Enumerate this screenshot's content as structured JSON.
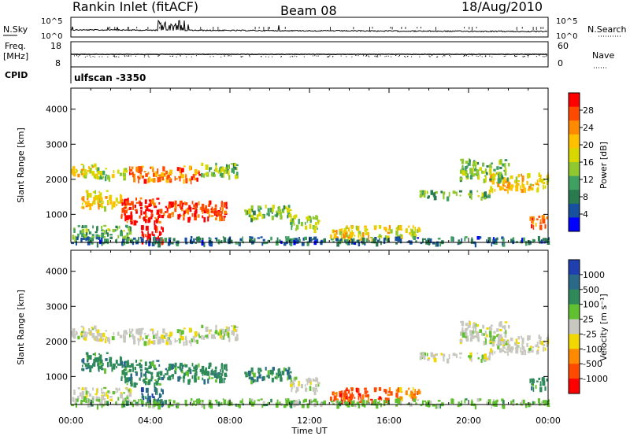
{
  "header": {
    "station": "Rankin Inlet (fitACF)",
    "beam": "Beam 08",
    "date": "18/Aug/2010"
  },
  "chart_data": [
    {
      "type": "line",
      "id": "nsky",
      "left_label": "N.Sky",
      "right_label": "N.Search",
      "left_ticks": [
        "10^5",
        "10^0"
      ],
      "right_ticks": [
        "10^5",
        "10^0"
      ]
    },
    {
      "type": "line",
      "id": "freq",
      "left_label_top": "Freq.",
      "left_label_unit": "[MHz]",
      "left_ticks": [
        "18",
        "8"
      ],
      "right_ticks": [
        "60",
        "0"
      ],
      "right_label": "Nave",
      "left_extra": "CPID",
      "mode_label": "ulfscan -3350"
    },
    {
      "type": "heatmap",
      "id": "power",
      "ylabel": "Slant Range [km]",
      "yticks": [
        1000,
        2000,
        3000,
        4000
      ],
      "ylim": [
        200,
        4600
      ],
      "colorbar_label": "Power [dB]",
      "colorbar_ticks": [
        "28",
        "24",
        "20",
        "16",
        "12",
        "8",
        "4"
      ],
      "colors": [
        "#ff0000",
        "#ff4a00",
        "#ff8a00",
        "#ffc000",
        "#d8d800",
        "#90c830",
        "#40a060",
        "#2a7a50",
        "#1850a0",
        "#0000ff"
      ]
    },
    {
      "type": "heatmap",
      "id": "velocity",
      "ylabel": "Slant Range [km]",
      "yticks": [
        1000,
        2000,
        3000,
        4000
      ],
      "ylim": [
        200,
        4600
      ],
      "colorbar_label": "Velocity [m s⁻¹]",
      "colorbar_ticks": [
        "1000",
        "500",
        "100",
        "25",
        "-25",
        "-100",
        "-500",
        "-1000"
      ],
      "colors": [
        "#2040b0",
        "#2a6a88",
        "#2e8a5a",
        "#60c030",
        "#c8c8c0",
        "#f0d800",
        "#ff8a00",
        "#ff4a00",
        "#ff0000"
      ],
      "xticks": [
        "00:00",
        "04:00",
        "08:00",
        "12:00",
        "16:00",
        "20:00",
        "00:00"
      ],
      "xlabel": "Time UT"
    }
  ]
}
